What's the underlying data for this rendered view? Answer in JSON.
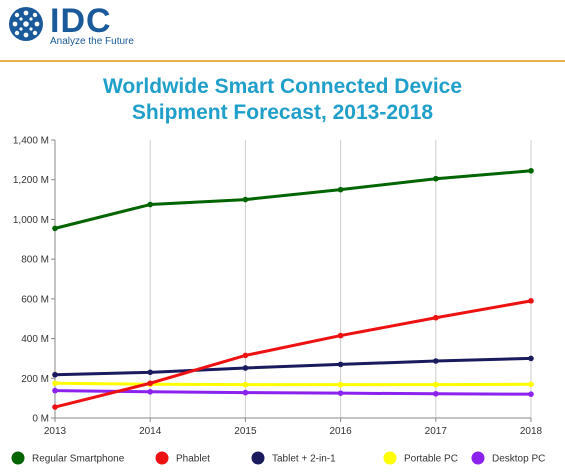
{
  "header": {
    "brand": "IDC",
    "tagline": "Analyze the Future"
  },
  "chart_data": {
    "type": "line",
    "title": "Worldwide Smart Connected Device Shipment Forecast, 2013-2018",
    "title_lines": [
      "Worldwide Smart Connected Device",
      "Shipment Forecast, 2013-2018"
    ],
    "x": [
      2013,
      2014,
      2015,
      2016,
      2017,
      2018
    ],
    "x_tick_labels": [
      "2013",
      "2014",
      "2015",
      "2016",
      "2017",
      "2018"
    ],
    "ylim": [
      0,
      1400
    ],
    "y_ticks": [
      0,
      200,
      400,
      600,
      800,
      1000,
      1200,
      1400
    ],
    "y_tick_labels": [
      "0 M",
      "200 M",
      "400 M",
      "600 M",
      "800 M",
      "1,000 M",
      "1,200 M",
      "1,400 M"
    ],
    "grid": "vertical",
    "legend_position": "bottom",
    "series": [
      {
        "name": "Regular Smartphone",
        "color": "#006400",
        "values": [
          955,
          1075,
          1100,
          1150,
          1205,
          1245
        ]
      },
      {
        "name": "Phablet",
        "color": "#ee1111",
        "values": [
          55,
          175,
          315,
          415,
          505,
          590
        ]
      },
      {
        "name": "Tablet + 2-in-1",
        "color": "#1a1a5e",
        "values": [
          218,
          230,
          252,
          270,
          287,
          300
        ]
      },
      {
        "name": "Portable PC",
        "color": "#ffff00",
        "values": [
          175,
          170,
          168,
          168,
          168,
          170
        ]
      },
      {
        "name": "Desktop PC",
        "color": "#8b22ee",
        "values": [
          138,
          132,
          128,
          125,
          122,
          120
        ]
      }
    ]
  }
}
